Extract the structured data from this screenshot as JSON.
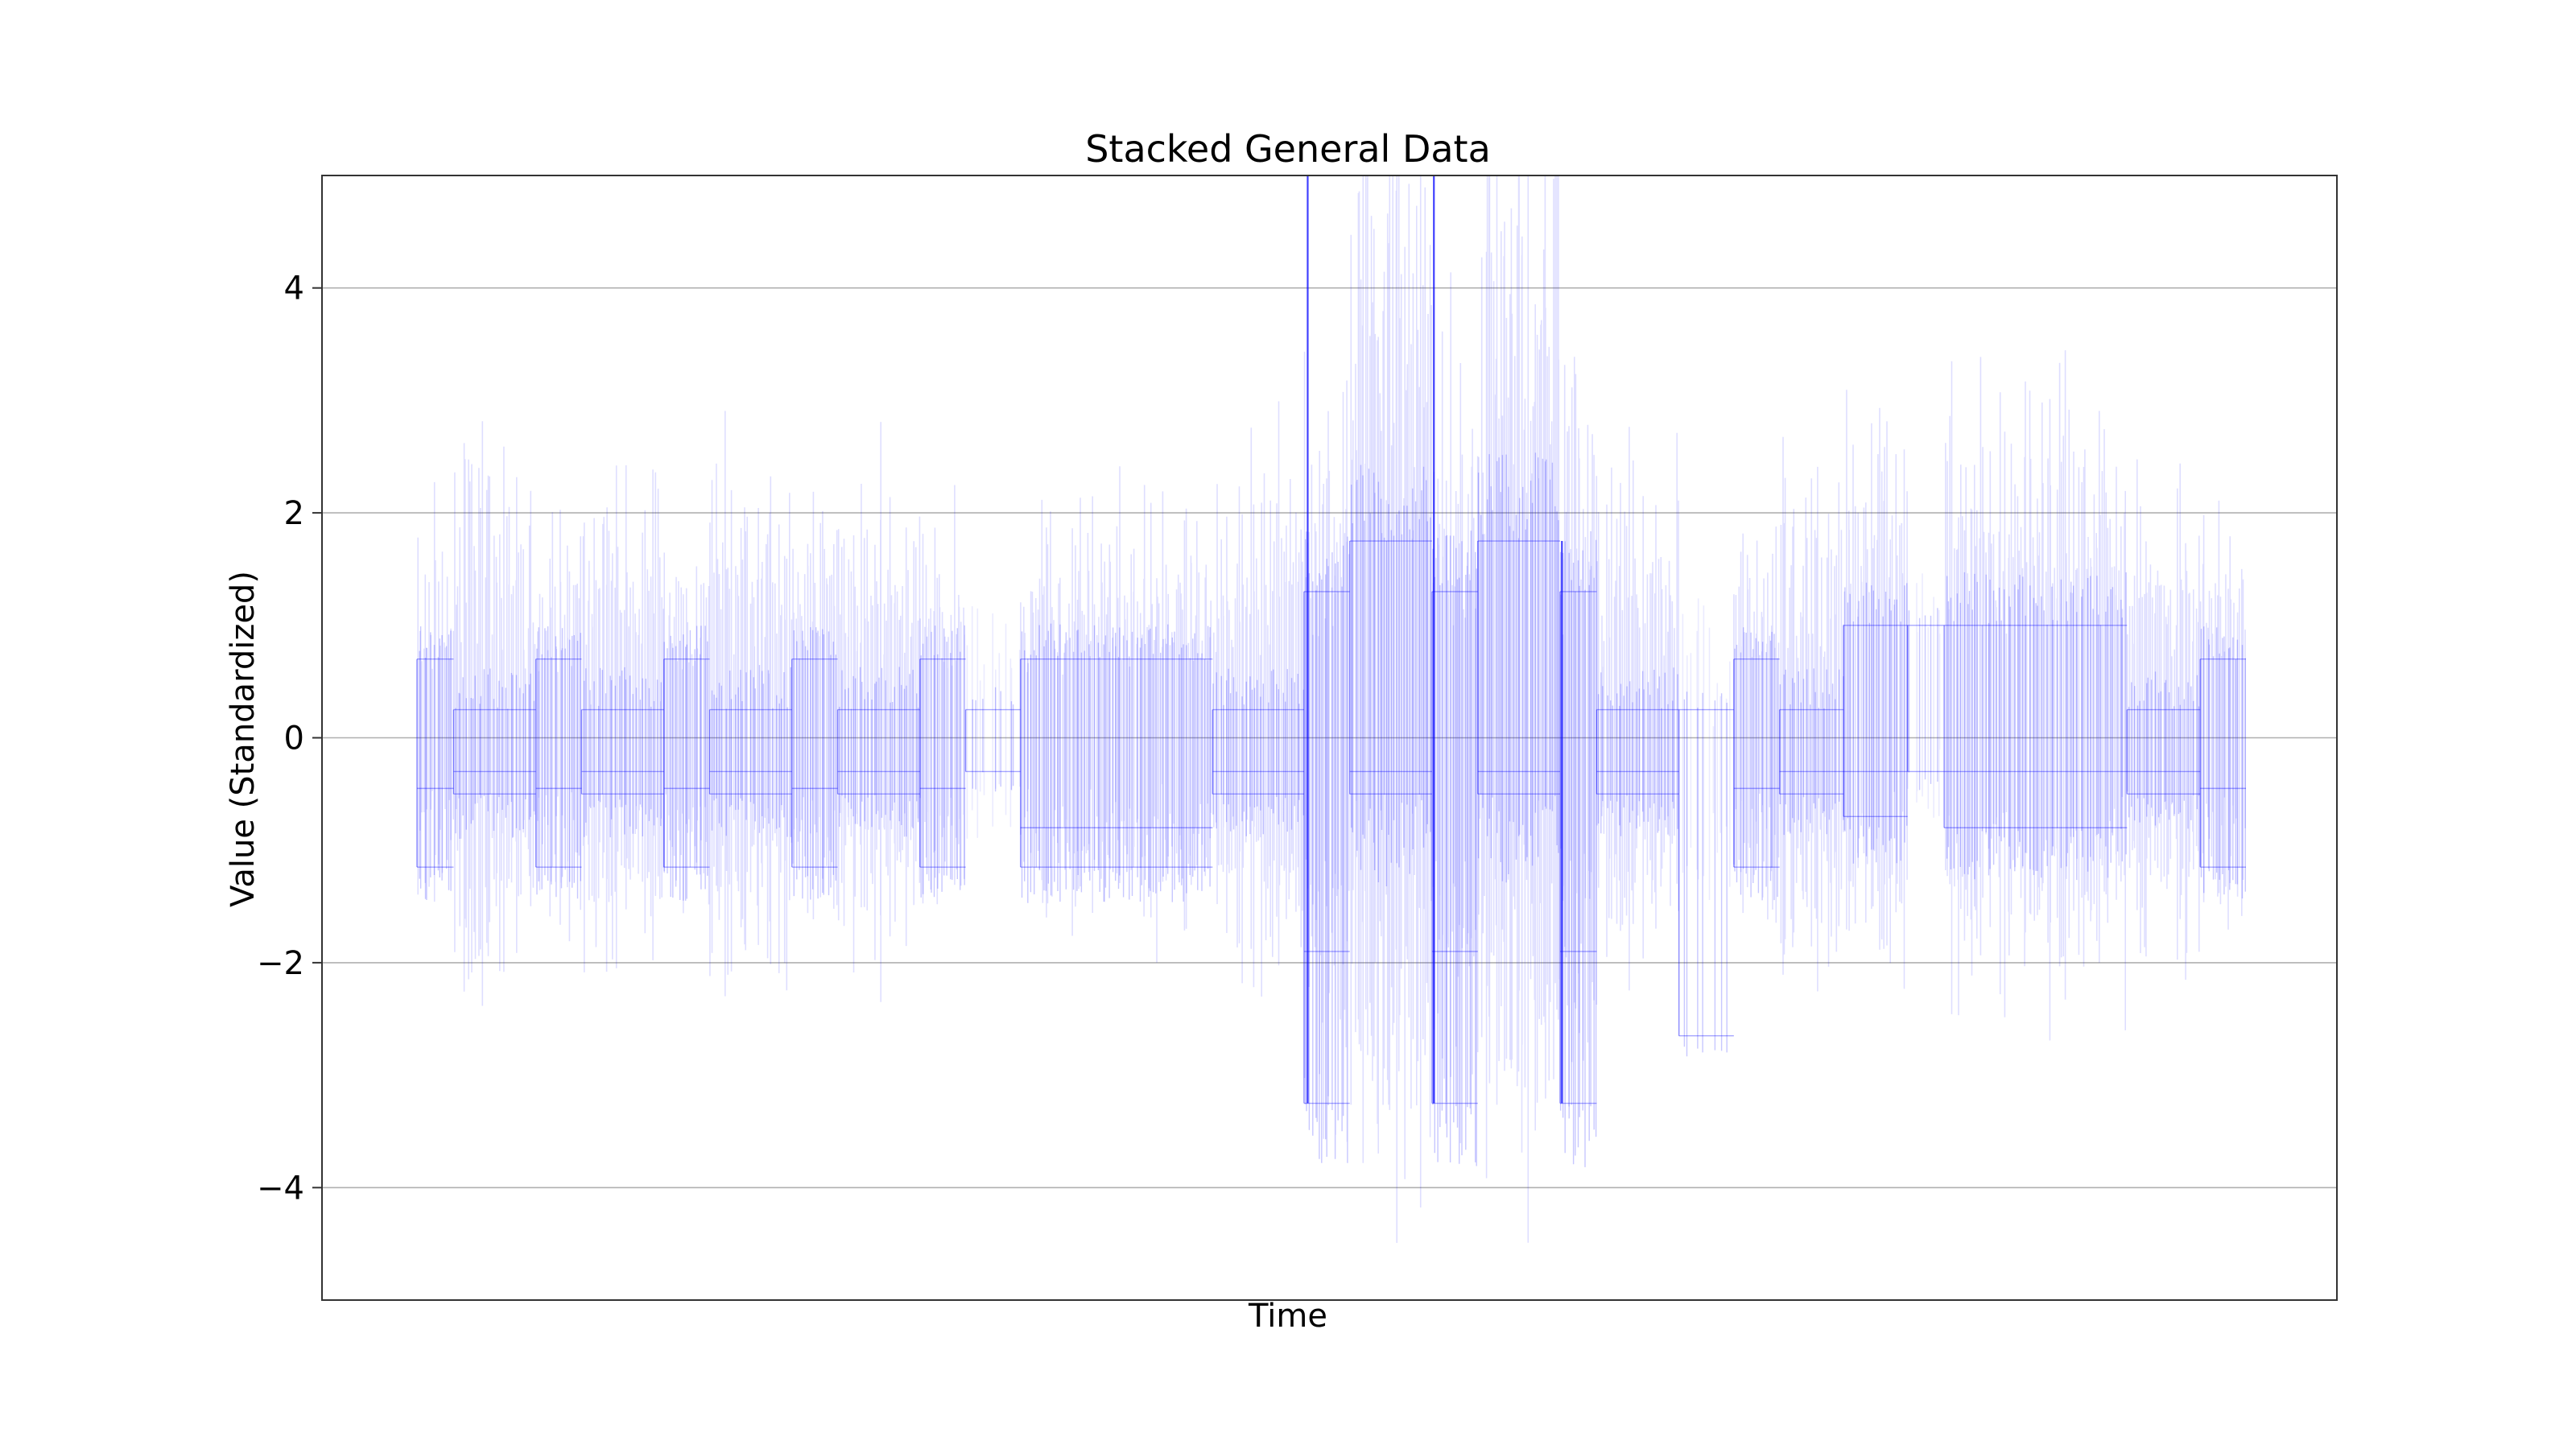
{
  "chart_data": {
    "type": "line",
    "title": "Stacked General Data",
    "xlabel": "Time",
    "ylabel": "Value (Standardized)",
    "ylim": [
      -5,
      5
    ],
    "yticks": [
      4,
      2,
      0,
      -2,
      -4
    ],
    "ytick_labels": [
      "4",
      "2",
      "0",
      "−2",
      "−4"
    ],
    "xticks_visible": false,
    "grid": "y",
    "line_color": "#0000ff",
    "grid_color": "#b0b0b0",
    "segments": [
      {
        "start": 0.0,
        "end": 0.02,
        "pattern": "tight",
        "levels": [
          0.7,
          -0.45,
          -1.15
        ],
        "amp": 1.2
      },
      {
        "start": 0.02,
        "end": 0.065,
        "pattern": "tight",
        "levels": [
          0.25,
          -0.3,
          -0.5
        ],
        "amp": 1.6
      },
      {
        "start": 0.065,
        "end": 0.09,
        "pattern": "tight",
        "levels": [
          0.7,
          -0.45,
          -1.15
        ],
        "amp": 1.2
      },
      {
        "start": 0.09,
        "end": 0.135,
        "pattern": "tight",
        "levels": [
          0.25,
          -0.3,
          -0.5
        ],
        "amp": 1.6
      },
      {
        "start": 0.135,
        "end": 0.16,
        "pattern": "tight",
        "levels": [
          0.7,
          -0.45,
          -1.15
        ],
        "amp": 1.2
      },
      {
        "start": 0.16,
        "end": 0.205,
        "pattern": "tight",
        "levels": [
          0.25,
          -0.3,
          -0.5
        ],
        "amp": 1.6
      },
      {
        "start": 0.205,
        "end": 0.23,
        "pattern": "tight",
        "levels": [
          0.7,
          -0.45,
          -1.15
        ],
        "amp": 1.2
      },
      {
        "start": 0.23,
        "end": 0.275,
        "pattern": "tight",
        "levels": [
          0.25,
          -0.3,
          -0.5
        ],
        "amp": 1.6
      },
      {
        "start": 0.275,
        "end": 0.3,
        "pattern": "tight",
        "levels": [
          0.7,
          -0.45,
          -1.15
        ],
        "amp": 1.2
      },
      {
        "start": 0.3,
        "end": 0.33,
        "pattern": "quiet",
        "levels": [
          0.25,
          -0.3
        ],
        "amp": 0.8
      },
      {
        "start": 0.33,
        "end": 0.435,
        "pattern": "tight",
        "levels": [
          0.7,
          -0.8,
          -1.15
        ],
        "amp": 1.3
      },
      {
        "start": 0.435,
        "end": 0.485,
        "pattern": "tight",
        "levels": [
          0.25,
          -0.3,
          -0.5
        ],
        "amp": 1.6
      },
      {
        "start": 0.485,
        "end": 0.51,
        "pattern": "wide",
        "levels": [
          1.3,
          -1.9,
          -3.25
        ],
        "amp": 2.3
      },
      {
        "start": 0.51,
        "end": 0.555,
        "pattern": "wide",
        "levels": [
          1.75,
          -0.3,
          -0.5
        ],
        "amp": 3.3
      },
      {
        "start": 0.555,
        "end": 0.58,
        "pattern": "wide",
        "levels": [
          1.3,
          -1.9,
          -3.25
        ],
        "amp": 2.3
      },
      {
        "start": 0.58,
        "end": 0.625,
        "pattern": "wide",
        "levels": [
          1.75,
          -0.3,
          -0.5
        ],
        "amp": 3.3
      },
      {
        "start": 0.625,
        "end": 0.645,
        "pattern": "wide",
        "levels": [
          1.3,
          -1.9,
          -3.25
        ],
        "amp": 2.3
      },
      {
        "start": 0.645,
        "end": 0.69,
        "pattern": "tight",
        "levels": [
          0.25,
          -0.3,
          -0.5
        ],
        "amp": 1.5
      },
      {
        "start": 0.69,
        "end": 0.72,
        "pattern": "quiet",
        "levels": [
          0.25,
          -2.65
        ],
        "amp": 1.0
      },
      {
        "start": 0.72,
        "end": 0.745,
        "pattern": "tight",
        "levels": [
          0.7,
          -0.45,
          -1.15
        ],
        "amp": 1.2
      },
      {
        "start": 0.745,
        "end": 0.78,
        "pattern": "tight",
        "levels": [
          0.25,
          -0.3,
          -0.5
        ],
        "amp": 1.5
      },
      {
        "start": 0.78,
        "end": 0.815,
        "pattern": "tight",
        "levels": [
          1.0,
          -0.3,
          -0.7
        ],
        "amp": 1.7
      },
      {
        "start": 0.815,
        "end": 0.835,
        "pattern": "quiet",
        "levels": [
          1.0,
          -0.3
        ],
        "amp": 0.9
      },
      {
        "start": 0.835,
        "end": 0.935,
        "pattern": "tight",
        "levels": [
          1.0,
          -0.3,
          -0.8
        ],
        "amp": 1.9
      },
      {
        "start": 0.935,
        "end": 0.975,
        "pattern": "tight",
        "levels": [
          0.25,
          -0.3,
          -0.5
        ],
        "amp": 1.4
      },
      {
        "start": 0.975,
        "end": 1.0,
        "pattern": "tight",
        "levels": [
          0.7,
          -0.45,
          -1.15
        ],
        "amp": 1.2
      }
    ],
    "spikes": [
      {
        "x": 0.487,
        "top": 5.0,
        "bottom": -3.25
      },
      {
        "x": 0.556,
        "top": 5.0,
        "bottom": -3.25
      },
      {
        "x": 0.626,
        "top": 1.75,
        "bottom": -3.25
      }
    ]
  }
}
